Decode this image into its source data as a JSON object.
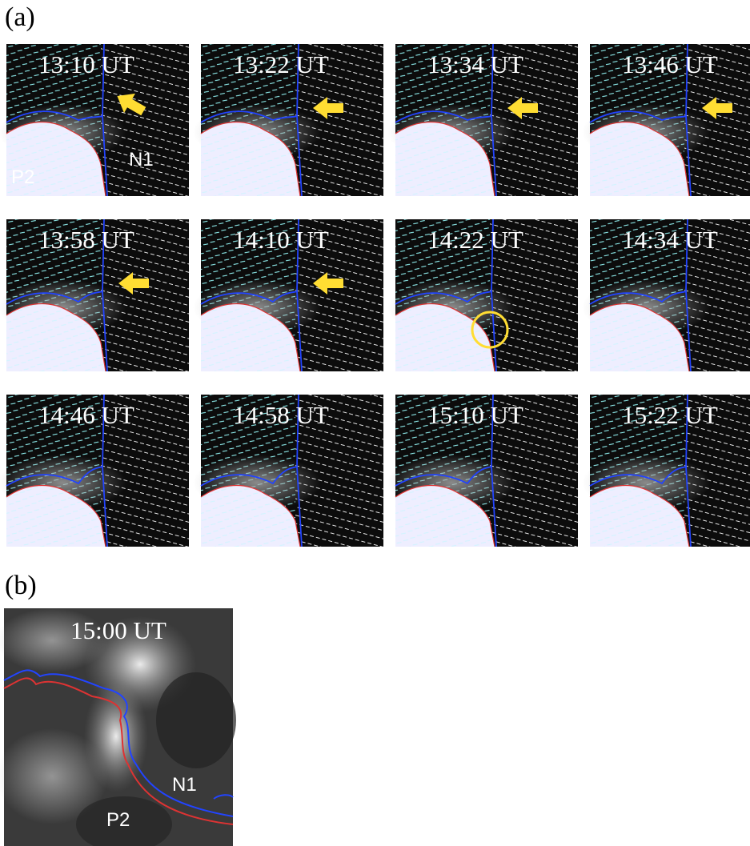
{
  "panel_a": {
    "label": "(a)",
    "frames": [
      {
        "time": "13:10 UT"
      },
      {
        "time": "13:22 UT"
      },
      {
        "time": "13:34 UT"
      },
      {
        "time": "13:46 UT"
      },
      {
        "time": "13:58 UT"
      },
      {
        "time": "14:10 UT"
      },
      {
        "time": "14:22 UT"
      },
      {
        "time": "14:34 UT"
      },
      {
        "time": "14:46 UT"
      },
      {
        "time": "14:58 UT"
      },
      {
        "time": "15:10 UT"
      },
      {
        "time": "15:22 UT"
      }
    ],
    "first_frame_labels": {
      "p2": "P2",
      "n1": "N1"
    }
  },
  "panel_b": {
    "label": "(b)",
    "time": "15:00 UT",
    "n1": "N1",
    "p2": "P2"
  }
}
